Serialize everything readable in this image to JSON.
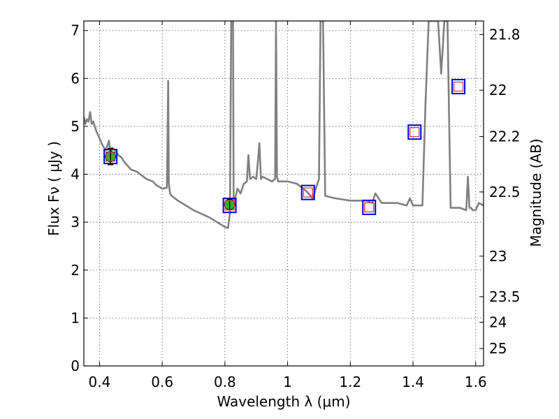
{
  "chart_data": {
    "type": "line",
    "xlabel": "Wavelength  λ (μm)",
    "ylabel": "Flux  Fν  ( μJy )",
    "y2label": "Magnitude (AB)",
    "xlim": [
      0.35,
      1.625
    ],
    "ylim": [
      0,
      7.2
    ],
    "grid": true,
    "x_ticks": [
      0.4,
      0.6,
      0.8,
      1.0,
      1.2,
      1.4,
      1.6
    ],
    "x_tick_labels": [
      "0.4",
      "0.6",
      "0.8",
      "1",
      "1.2",
      "1.4",
      "1.6"
    ],
    "y_ticks": [
      0,
      1,
      2,
      3,
      4,
      5,
      6,
      7
    ],
    "y_tick_labels": [
      "0",
      "1",
      "2",
      "3",
      "4",
      "5",
      "6",
      "7"
    ],
    "mag_ticks": [
      21.8,
      22,
      22.2,
      22.5,
      23,
      23.5,
      24,
      25
    ],
    "mag_tick_labels": [
      "21.8",
      "22",
      "22.2",
      "22.5",
      "23",
      "23.5",
      "24",
      "25"
    ],
    "series": [
      {
        "kind": "model_spectrum",
        "color": "#808080",
        "x": [
          0.35,
          0.355,
          0.36,
          0.365,
          0.37,
          0.375,
          0.38,
          0.39,
          0.4,
          0.41,
          0.42,
          0.43,
          0.435,
          0.44,
          0.45,
          0.46,
          0.47,
          0.48,
          0.5,
          0.52,
          0.55,
          0.57,
          0.58,
          0.6,
          0.615,
          0.619,
          0.621,
          0.625,
          0.63,
          0.65,
          0.7,
          0.75,
          0.78,
          0.8,
          0.81,
          0.816,
          0.82,
          0.822,
          0.826,
          0.828,
          0.83,
          0.833,
          0.84,
          0.85,
          0.86,
          0.87,
          0.875,
          0.88,
          0.89,
          0.9,
          0.905,
          0.91,
          0.915,
          0.92,
          0.95,
          0.96,
          0.963,
          0.966,
          0.97,
          1.0,
          1.03,
          1.06,
          1.08,
          1.1,
          1.105,
          1.11,
          1.113,
          1.12,
          1.15,
          1.2,
          1.25,
          1.27,
          1.28,
          1.3,
          1.35,
          1.38,
          1.39,
          1.4,
          1.42,
          1.43,
          1.44,
          1.45,
          1.455,
          1.46,
          1.48,
          1.49,
          1.5,
          1.505,
          1.51,
          1.52,
          1.55,
          1.57,
          1.575,
          1.58,
          1.585,
          1.59,
          1.6,
          1.61,
          1.625
        ],
        "y": [
          5.2,
          5.05,
          5.15,
          5.1,
          5.3,
          5.05,
          5.1,
          4.9,
          4.75,
          4.6,
          4.5,
          4.7,
          4.45,
          4.55,
          4.5,
          4.4,
          4.35,
          4.25,
          4.1,
          4.05,
          3.9,
          3.85,
          3.78,
          3.7,
          3.72,
          5.95,
          3.8,
          3.6,
          3.55,
          3.45,
          3.25,
          3.1,
          2.98,
          2.9,
          2.88,
          3.2,
          7.2,
          7.2,
          7.2,
          3.3,
          3.4,
          3.5,
          3.7,
          3.6,
          3.8,
          3.85,
          4.4,
          3.9,
          3.95,
          3.9,
          4.25,
          4.65,
          3.9,
          3.95,
          3.85,
          3.9,
          7.2,
          3.95,
          3.85,
          3.85,
          3.8,
          3.65,
          3.5,
          3.9,
          7.2,
          7.2,
          7.2,
          3.55,
          3.5,
          3.45,
          3.45,
          3.4,
          3.6,
          3.4,
          3.4,
          3.35,
          3.5,
          3.35,
          3.35,
          3.35,
          5.5,
          7.2,
          7.2,
          7.2,
          7.2,
          6.1,
          7.2,
          7.2,
          7.2,
          3.3,
          3.3,
          3.25,
          3.95,
          3.3,
          3.3,
          3.25,
          3.25,
          3.4,
          3.35
        ]
      },
      {
        "kind": "observed_photometry",
        "marker": "circle",
        "fill": "#22bb22",
        "points": [
          {
            "x": 0.435,
            "y": 4.37,
            "yerr": 0.17
          },
          {
            "x": 0.815,
            "y": 3.37,
            "yerr": 0.11
          }
        ]
      },
      {
        "kind": "model_photometry",
        "marker": "square",
        "edge": "#e8334a",
        "points": [
          {
            "x": 0.435,
            "y": 4.37
          },
          {
            "x": 0.815,
            "y": 3.35
          },
          {
            "x": 1.065,
            "y": 3.62
          },
          {
            "x": 1.26,
            "y": 3.31
          },
          {
            "x": 1.405,
            "y": 4.88
          },
          {
            "x": 1.545,
            "y": 5.83
          }
        ]
      },
      {
        "kind": "bandpass_box",
        "marker": "square",
        "edge": "#0000dd",
        "points": [
          {
            "x": 0.435,
            "y": 4.37
          },
          {
            "x": 0.815,
            "y": 3.35
          },
          {
            "x": 1.065,
            "y": 3.62
          },
          {
            "x": 1.26,
            "y": 3.31
          },
          {
            "x": 1.405,
            "y": 4.88
          },
          {
            "x": 1.545,
            "y": 5.83
          }
        ]
      }
    ]
  }
}
